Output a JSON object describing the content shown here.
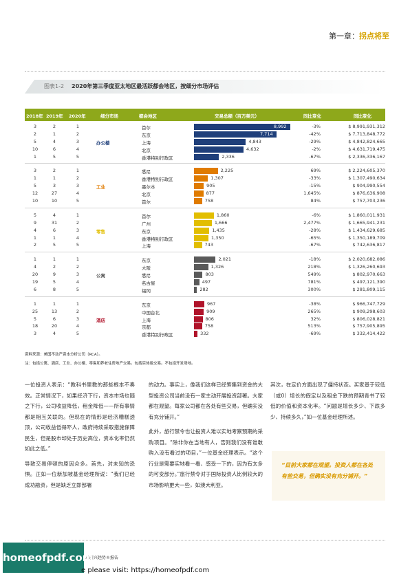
{
  "header": {
    "chapter_prefix": "第一章：",
    "chapter_title": "拐点将至"
  },
  "figure": {
    "number": "图表1-2",
    "title": "2020年第三季度亚太地区最活跃都会地区，按细分市场评估"
  },
  "columns": [
    "2018年",
    "2019年",
    "2020年",
    "细分市场",
    "都会地区",
    "交易总额（百万美元）",
    "同比变化",
    "同比变化"
  ],
  "chart_data": {
    "type": "bar",
    "title": "2020年第三季度亚太地区最活跃都会地区，按细分市场评估",
    "value_label": "交易总额（百万美元）",
    "xlim": [
      0,
      9000
    ],
    "groups": [
      {
        "segment": "办公楼",
        "color": "#1f3f7a",
        "rows": [
          {
            "r2018": "3",
            "r2019": "2",
            "r2020": "1",
            "metro": "首尔",
            "value": 8992,
            "vlabel": "8,992",
            "yoy": "-3%",
            "usd": "$ 8,991,931,312"
          },
          {
            "r2018": "2",
            "r2019": "1",
            "r2020": "2",
            "metro": "东京",
            "value": 7714,
            "vlabel": "7,714",
            "yoy": "-42%",
            "usd": "$ 7,713,848,772"
          },
          {
            "r2018": "5",
            "r2019": "4",
            "r2020": "3",
            "metro": "上海",
            "value": 4843,
            "vlabel": "4,843",
            "yoy": "-29%",
            "usd": "$ 4,842,824,665"
          },
          {
            "r2018": "10",
            "r2019": "6",
            "r2020": "4",
            "metro": "北京",
            "value": 4632,
            "vlabel": "4,632",
            "yoy": "-2%",
            "usd": "$ 4,631,719,475"
          },
          {
            "r2018": "1",
            "r2019": "5",
            "r2020": "5",
            "metro": "香港特别行政区",
            "value": 2336,
            "vlabel": "2,336",
            "yoy": "-67%",
            "usd": "$ 2,336,336,167"
          }
        ]
      },
      {
        "segment": "工业",
        "color": "#e07b00",
        "rows": [
          {
            "r2018": "3",
            "r2019": "2",
            "r2020": "1",
            "metro": "悉尼",
            "value": 2225,
            "vlabel": "2,225",
            "yoy": "69%",
            "usd": "$ 2,224,605,370"
          },
          {
            "r2018": "1",
            "r2019": "1",
            "r2020": "2",
            "metro": "香港特别行政区",
            "value": 1307,
            "vlabel": "1,307",
            "yoy": "-33%",
            "usd": "$ 1,307,490,634"
          },
          {
            "r2018": "5",
            "r2019": "3",
            "r2020": "3",
            "metro": "墨尔本",
            "value": 905,
            "vlabel": "905",
            "yoy": "-15%",
            "usd": "$ 904,990,554"
          },
          {
            "r2018": "12",
            "r2019": "27",
            "r2020": "4",
            "metro": "北京",
            "value": 877,
            "vlabel": "877",
            "yoy": "1,645%",
            "usd": "$ 876,636,908"
          },
          {
            "r2018": "10",
            "r2019": "10",
            "r2020": "5",
            "metro": "首尔",
            "value": 758,
            "vlabel": "758",
            "yoy": "84%",
            "usd": "$ 757,703,236"
          }
        ]
      },
      {
        "segment": "零售",
        "color": "#e2be00",
        "rows": [
          {
            "r2018": "5",
            "r2019": "4",
            "r2020": "1",
            "metro": "首尔",
            "value": 1860,
            "vlabel": "1,860",
            "yoy": "-6%",
            "usd": "$ 1,860,011,931"
          },
          {
            "r2018": "9",
            "r2019": "31",
            "r2020": "2",
            "metro": "广州",
            "value": 1666,
            "vlabel": "1,666",
            "yoy": "2,477%",
            "usd": "$ 1,665,941,231"
          },
          {
            "r2018": "4",
            "r2019": "6",
            "r2020": "3",
            "metro": "东京",
            "value": 1435,
            "vlabel": "1,435",
            "yoy": "-28%",
            "usd": "$ 1,434,629,685"
          },
          {
            "r2018": "1",
            "r2019": "1",
            "r2020": "4",
            "metro": "香港特别行政区",
            "value": 1350,
            "vlabel": "1,350",
            "yoy": "-65%",
            "usd": "$ 1,350,189,709"
          },
          {
            "r2018": "2",
            "r2019": "5",
            "r2020": "5",
            "metro": "上海",
            "value": 743,
            "vlabel": "743",
            "yoy": "-67%",
            "usd": "$ 742,636,817"
          }
        ]
      },
      {
        "segment": "公寓",
        "color": "#5a5a5a",
        "rows": [
          {
            "r2018": "1",
            "r2019": "1",
            "r2020": "1",
            "metro": "东京",
            "value": 2021,
            "vlabel": "2,021",
            "yoy": "-18%",
            "usd": "$ 2,020,682,086"
          },
          {
            "r2018": "4",
            "r2019": "2",
            "r2020": "2",
            "metro": "大阪",
            "value": 1326,
            "vlabel": "1,326",
            "yoy": "218%",
            "usd": "$ 1,326,260,693"
          },
          {
            "r2018": "20",
            "r2019": "9",
            "r2020": "3",
            "metro": "悉尼",
            "value": 803,
            "vlabel": "803",
            "yoy": "549%",
            "usd": "$ 802,970,663"
          },
          {
            "r2018": "19",
            "r2019": "5",
            "r2020": "4",
            "metro": "名古屋",
            "value": 497,
            "vlabel": "497",
            "yoy": "781%",
            "usd": "$ 497,121,390"
          },
          {
            "r2018": "6",
            "r2019": "8",
            "r2020": "5",
            "metro": "福冈",
            "value": 282,
            "vlabel": "282",
            "yoy": "300%",
            "usd": "$ 281,809,115"
          }
        ]
      },
      {
        "segment": "酒店",
        "color": "#b0132a",
        "rows": [
          {
            "r2018": "1",
            "r2019": "1",
            "r2020": "1",
            "metro": "东京",
            "value": 967,
            "vlabel": "967",
            "yoy": "-38%",
            "usd": "$ 966,747,729"
          },
          {
            "r2018": "25",
            "r2019": "13",
            "r2020": "2",
            "metro": "中国台北",
            "value": 909,
            "vlabel": "909",
            "yoy": "265%",
            "usd": "$ 909,298,603"
          },
          {
            "r2018": "5",
            "r2019": "6",
            "r2020": "3",
            "metro": "上海",
            "value": 806,
            "vlabel": "806",
            "yoy": "32%",
            "usd": "$ 806,028,821"
          },
          {
            "r2018": "18",
            "r2019": "20",
            "r2020": "4",
            "metro": "京都",
            "value": 758,
            "vlabel": "758",
            "yoy": "513%",
            "usd": "$ 757,905,895"
          },
          {
            "r2018": "3",
            "r2019": "4",
            "r2020": "5",
            "metro": "香港特别行政区",
            "value": 332,
            "vlabel": "332",
            "yoy": "-69%",
            "usd": "$ 332,414,422"
          }
        ]
      }
    ]
  },
  "notes": {
    "source": "资料来源：美国不动产资本分析公司（RCA）。",
    "note": "注：包括公寓、酒店、工业、办公楼、零售和养老住房地产交易。包括实体级交易。不包括开发场地。"
  },
  "body": {
    "col1": [
      "一位投资人表示：“教科书里教的那些根本不奏效。正常情况下，如果经济下行，资本市场也随之下行，公司收益降低，租金降低——所有事情都是相互关联的。但现在的情形是经济糟糕透顶，公司收益低得吓人，政府持续采取措施保障民生，但是股市却处于历史高位，资本化率仍然如此之低。”",
      "导致交易停顿的原因众多。首先，对未知的恐惧。正如一位新加坡基金经理所说：“我们已经成功融资，但是缺乏立即部署"
    ],
    "col2": [
      "的动力。事实上，像我们这样已经筹集到资金的大型投资公司当前没有一家主动开展投资部署。大家都在观望。每家公司都在各处有些交易，但确实没有充分铺开。”",
      "此外，旅行禁令也让投资人难以实地考察预期的采购项目。“除非你在当地有人，否则我们没有谁敢购入没有看过的项目，”一位基金经理表示。“这个行业是需要实地看一看、感受一下的，因为有太多的可变部分。”旅行禁令对于国际投资人比例较大的市场影响更大一些，如澳大利亚。"
    ],
    "col3": [
      "其次，在定价方面出现了僵持状态。买家基于较低（或0）增长的假定以及租金下跌的预期青书了较低的价值和资本化率。“问题是增长多少、下跌多少、持续多久，”如一位基金经理所述。"
    ]
  },
  "quote": "“目前大家都在观望。投资人都在各处有些交易，但确实没有充分铺开。”",
  "footer": {
    "report": "市场新兴趋势®报告",
    "watermark_logo": "homeofpdf.com",
    "watermark_text": "e please visit: https://homeofpdf.com"
  }
}
